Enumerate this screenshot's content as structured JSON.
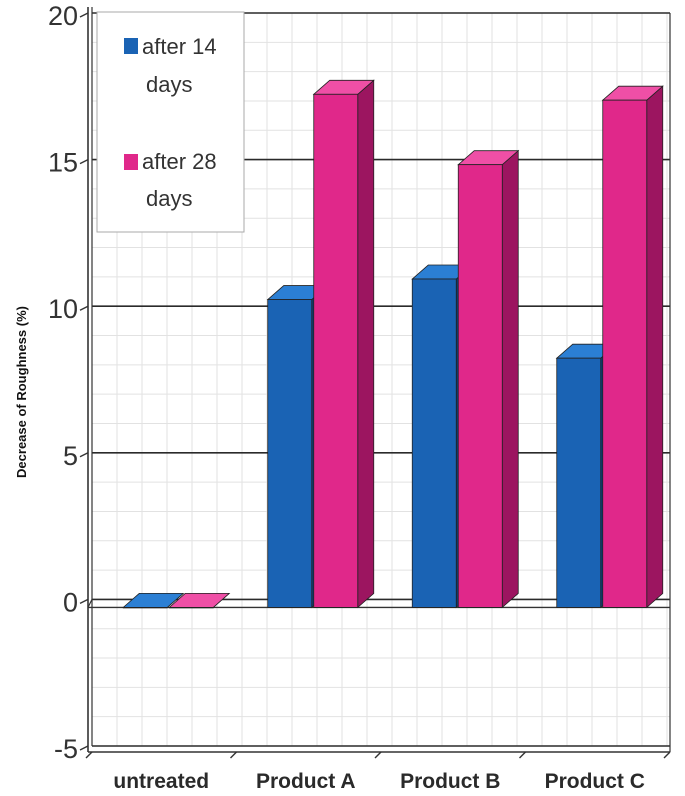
{
  "chart_data": {
    "type": "bar",
    "ylabel": "Decrease of Roughness (%)",
    "xlabel": "",
    "ylim": [
      -5,
      20
    ],
    "yticks": [
      "-5",
      "0",
      "5",
      "10",
      "15",
      "20"
    ],
    "categories": [
      "untreated",
      "Product A",
      "Product B",
      "Product C"
    ],
    "series": [
      {
        "name": "after 14 days",
        "values": [
          0,
          10.5,
          11.2,
          8.5
        ]
      },
      {
        "name": "after 28 days",
        "values": [
          0,
          17.5,
          15.1,
          17.3
        ]
      }
    ],
    "grid": true,
    "legend_position": "top-left",
    "colors": {
      "after_14_front": "#1a63b4",
      "after_14_top": "#2b7fd4",
      "after_14_side": "#0e3f7a",
      "after_28_front": "#e0288a",
      "after_28_top": "#ef4fa6",
      "after_28_side": "#9c1560",
      "grid_major": "#2a2a2a",
      "grid_minor": "#e2e2e2"
    }
  },
  "legend": {
    "entries": [
      {
        "line1": "after 14",
        "line2": "days"
      },
      {
        "line1": "after 28",
        "line2": "days"
      }
    ]
  }
}
